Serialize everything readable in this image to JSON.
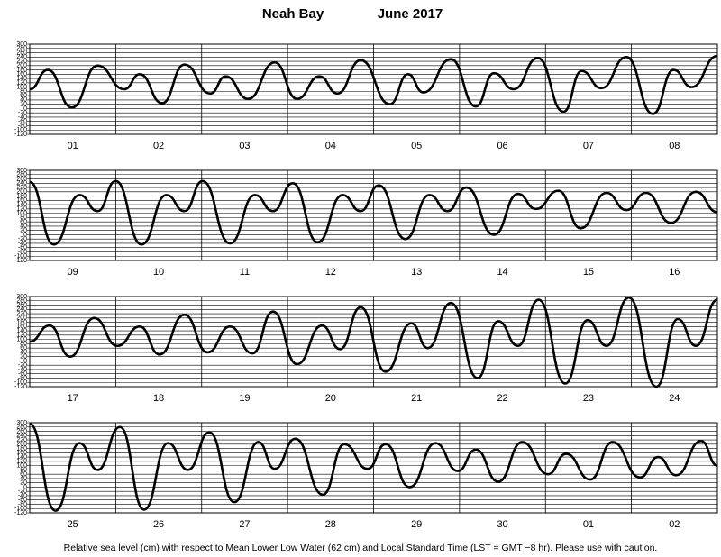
{
  "title": "Neah Bay",
  "date": "June 2017",
  "note": "Relative sea level (cm) with respect to Mean Lower Low Water (62 cm) and Local Standard Time (LST = GMT −8 hr). Please use with caution.",
  "chart_data": [
    {
      "type": "line",
      "categories": [
        "01",
        "02",
        "03",
        "04",
        "05",
        "06",
        "07",
        "08"
      ],
      "xlim": [
        0,
        8
      ],
      "ylim": [
        -120,
        300
      ],
      "yticks": [
        -120,
        -100,
        -80,
        -60,
        -40,
        -20,
        0,
        20,
        40,
        60,
        80,
        100,
        120,
        140,
        160,
        180,
        200,
        220,
        240,
        260,
        280,
        300
      ],
      "x": [
        0,
        0.21,
        0.49,
        0.79,
        1.1,
        1.28,
        1.54,
        1.8,
        2.1,
        2.28,
        2.54,
        2.85,
        3.11,
        3.37,
        3.58,
        3.85,
        4.19,
        4.4,
        4.58,
        4.9,
        5.19,
        5.4,
        5.63,
        5.91,
        6.21,
        6.42,
        6.65,
        6.94,
        7.25,
        7.49,
        7.7,
        8.0
      ],
      "series": [
        {
          "color": "#000000",
          "values": [
            90,
            180,
            5,
            200,
            90,
            160,
            25,
            205,
            70,
            150,
            45,
            215,
            45,
            150,
            70,
            225,
            20,
            160,
            75,
            230,
            10,
            165,
            90,
            235,
            -15,
            175,
            95,
            240,
            -25,
            180,
            100,
            245
          ]
        }
      ]
    },
    {
      "type": "line",
      "categories": [
        "09",
        "10",
        "11",
        "12",
        "13",
        "14",
        "15",
        "16"
      ],
      "xlim": [
        0,
        8
      ],
      "ylim": [
        -120,
        300
      ],
      "yticks": [
        -120,
        -100,
        -80,
        -60,
        -40,
        -20,
        0,
        20,
        40,
        60,
        80,
        100,
        120,
        140,
        160,
        180,
        200,
        220,
        240,
        260,
        280,
        300
      ],
      "x": [
        0,
        0.28,
        0.58,
        0.79,
        1.0,
        1.3,
        1.59,
        1.8,
        2.01,
        2.33,
        2.62,
        2.83,
        3.06,
        3.35,
        3.64,
        3.85,
        4.06,
        4.37,
        4.65,
        4.86,
        5.08,
        5.4,
        5.68,
        5.89,
        6.15,
        6.41,
        6.71,
        6.94,
        7.17,
        7.46,
        7.75,
        8.0
      ],
      "series": [
        {
          "color": "#000000",
          "values": [
            245,
            -45,
            185,
            110,
            250,
            -45,
            185,
            110,
            250,
            -40,
            185,
            110,
            240,
            -35,
            185,
            110,
            230,
            -20,
            185,
            110,
            220,
            0,
            190,
            120,
            205,
            30,
            195,
            115,
            195,
            55,
            200,
            105
          ]
        }
      ]
    },
    {
      "type": "line",
      "categories": [
        "17",
        "18",
        "19",
        "20",
        "21",
        "22",
        "23",
        "24"
      ],
      "xlim": [
        0,
        8
      ],
      "ylim": [
        -120,
        300
      ],
      "yticks": [
        -120,
        -100,
        -80,
        -60,
        -40,
        -20,
        0,
        20,
        40,
        60,
        80,
        100,
        120,
        140,
        160,
        180,
        200,
        220,
        240,
        260,
        280,
        300
      ],
      "x": [
        0,
        0.23,
        0.47,
        0.75,
        1.02,
        1.28,
        1.51,
        1.8,
        2.07,
        2.33,
        2.59,
        2.83,
        3.11,
        3.4,
        3.61,
        3.85,
        4.14,
        4.44,
        4.63,
        4.9,
        5.21,
        5.45,
        5.68,
        5.92,
        6.23,
        6.49,
        6.71,
        6.97,
        7.29,
        7.54,
        7.75,
        8.0
      ],
      "series": [
        {
          "color": "#000000",
          "values": [
            90,
            165,
            20,
            200,
            70,
            160,
            30,
            215,
            40,
            160,
            35,
            230,
            -15,
            165,
            55,
            250,
            -50,
            175,
            60,
            270,
            -80,
            185,
            70,
            285,
            -105,
            190,
            70,
            295,
            -120,
            195,
            70,
            285
          ]
        }
      ]
    },
    {
      "type": "line",
      "categories": [
        "25",
        "26",
        "27",
        "28",
        "29",
        "30",
        "01",
        "02"
      ],
      "xlim": [
        0,
        8
      ],
      "ylim": [
        -120,
        300
      ],
      "yticks": [
        -120,
        -100,
        -80,
        -60,
        -40,
        -20,
        0,
        20,
        40,
        60,
        80,
        100,
        120,
        140,
        160,
        180,
        200,
        220,
        240,
        260,
        280,
        300
      ],
      "x": [
        0,
        0.3,
        0.58,
        0.79,
        1.05,
        1.33,
        1.61,
        1.84,
        2.09,
        2.38,
        2.66,
        2.85,
        3.09,
        3.41,
        3.66,
        3.93,
        4.14,
        4.42,
        4.72,
        4.98,
        5.19,
        5.45,
        5.73,
        6.03,
        6.24,
        6.52,
        6.78,
        7.1,
        7.31,
        7.52,
        7.81,
        8.0
      ],
      "series": [
        {
          "color": "#000000",
          "values": [
            295,
            -110,
            205,
            80,
            280,
            -105,
            205,
            80,
            255,
            -70,
            210,
            85,
            225,
            -35,
            200,
            85,
            200,
            0,
            205,
            75,
            175,
            25,
            210,
            60,
            155,
            35,
            210,
            45,
            140,
            55,
            215,
            100
          ]
        }
      ]
    }
  ]
}
